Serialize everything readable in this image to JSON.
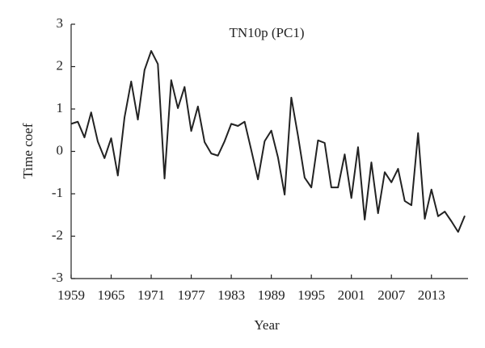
{
  "chart_data": {
    "type": "line",
    "title": "TN10p (PC1)",
    "x_label": "Year",
    "y_label": "Time coef",
    "x": [
      1959,
      1960,
      1961,
      1962,
      1963,
      1964,
      1965,
      1966,
      1967,
      1968,
      1969,
      1970,
      1971,
      1972,
      1973,
      1974,
      1975,
      1976,
      1977,
      1978,
      1979,
      1980,
      1981,
      1982,
      1983,
      1984,
      1985,
      1986,
      1987,
      1988,
      1989,
      1990,
      1991,
      1992,
      1993,
      1994,
      1995,
      1996,
      1997,
      1998,
      1999,
      2000,
      2001,
      2002,
      2003,
      2004,
      2005,
      2006,
      2007,
      2008,
      2009,
      2010,
      2011,
      2012,
      2013,
      2014,
      2015,
      2016,
      2017,
      2018
    ],
    "values": [
      0.65,
      0.7,
      0.33,
      0.92,
      0.23,
      -0.16,
      0.31,
      -0.57,
      0.8,
      1.65,
      0.75,
      1.92,
      2.37,
      2.06,
      -0.64,
      1.68,
      1.02,
      1.52,
      0.48,
      1.06,
      0.22,
      -0.05,
      -0.1,
      0.24,
      0.65,
      0.6,
      0.7,
      0.03,
      -0.66,
      0.24,
      0.49,
      -0.14,
      -1.02,
      1.27,
      0.37,
      -0.62,
      -0.85,
      0.26,
      0.2,
      -0.85,
      -0.85,
      -0.07,
      -1.1,
      0.1,
      -1.61,
      -0.26,
      -1.46,
      -0.49,
      -0.73,
      -0.41,
      -1.17,
      -1.27,
      0.43,
      -1.59,
      -0.9,
      -1.53,
      -1.42,
      -1.65,
      -1.9,
      -1.52
    ],
    "color": "#222222",
    "xlim": [
      1959,
      2018
    ],
    "xticks": [
      1959,
      1965,
      1971,
      1977,
      1983,
      1989,
      1995,
      2001,
      2007,
      2013
    ],
    "ylim": [
      -3,
      3
    ],
    "yticks": [
      -3,
      -2,
      -1,
      0,
      1,
      2,
      3
    ]
  }
}
